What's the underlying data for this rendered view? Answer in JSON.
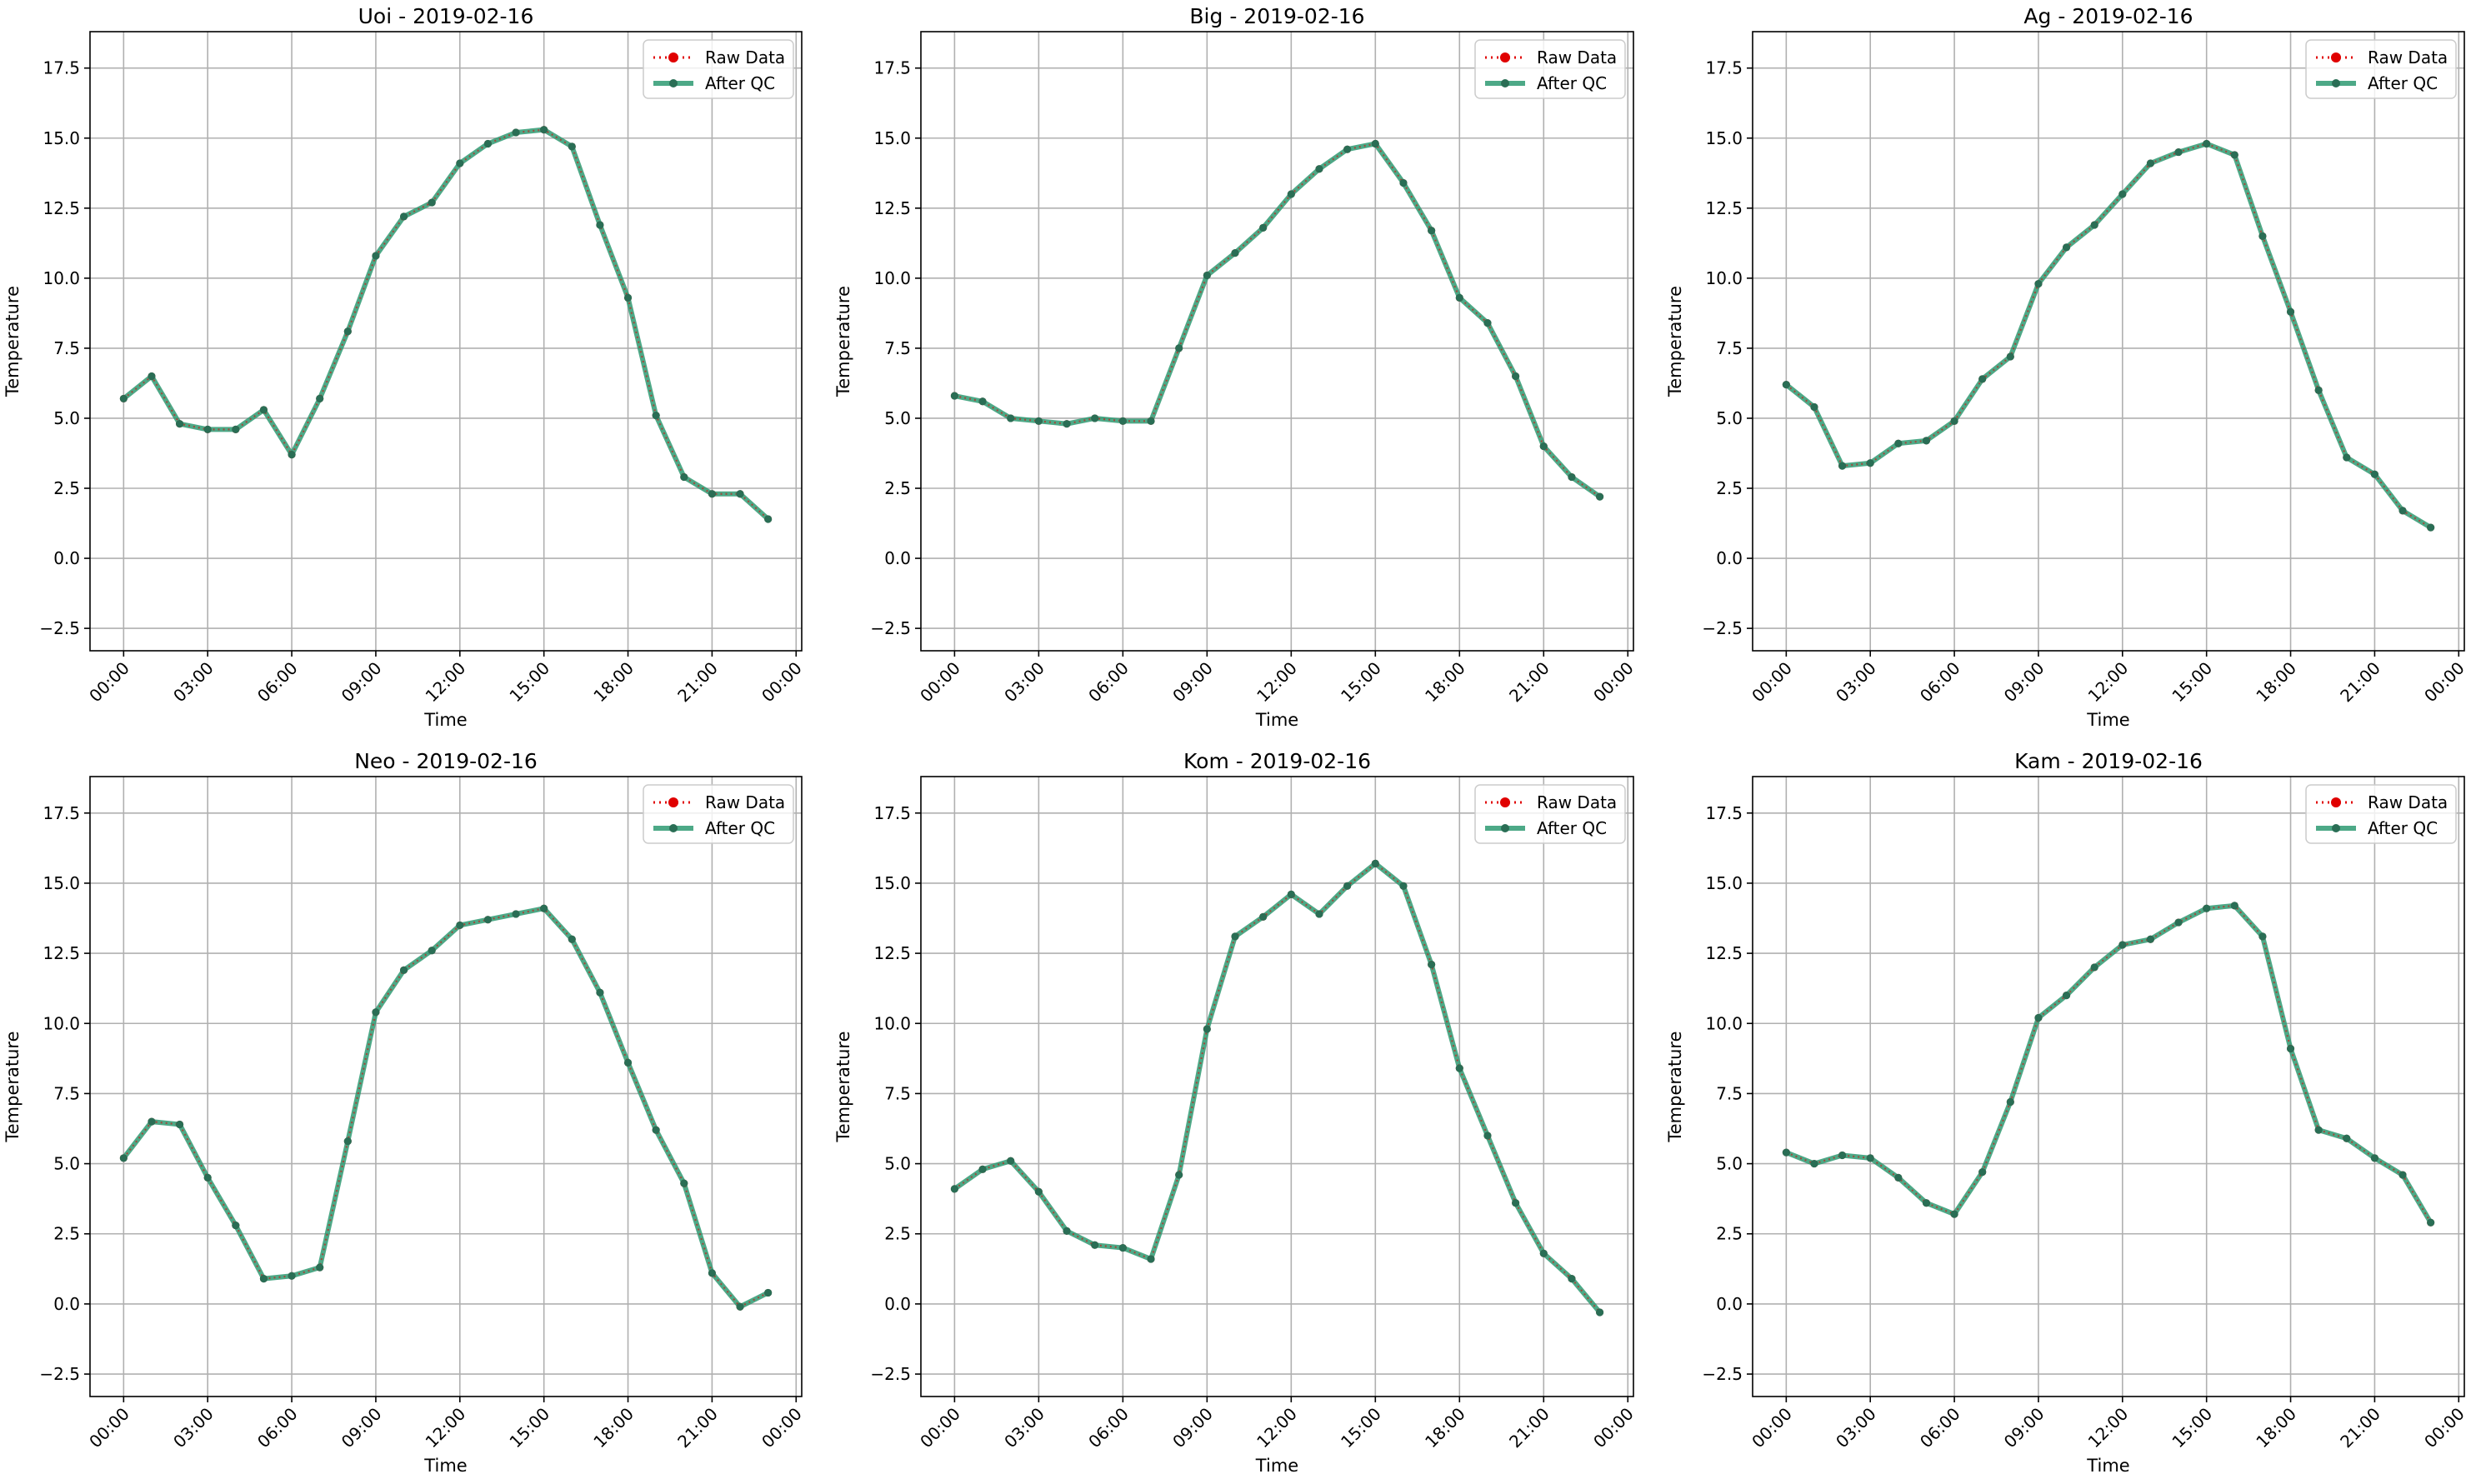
{
  "figure": {
    "background": "#ffffff"
  },
  "style": {
    "raw_color": "#e00000",
    "qc_color": "#2e9a72",
    "qc_marker_color": "#2a6e55",
    "grid_color": "#b0b0b0"
  },
  "axes_common": {
    "xlabel": "Time",
    "ylabel": "Temperature",
    "ylim": [
      -3.3,
      18.8
    ],
    "yticks": [
      -2.5,
      0.0,
      2.5,
      5.0,
      7.5,
      10.0,
      12.5,
      15.0,
      17.5
    ],
    "ytick_labels": [
      "−2.5",
      "0.0",
      "2.5",
      "5.0",
      "7.5",
      "10.0",
      "12.5",
      "15.0",
      "17.5"
    ],
    "xlim_hours": [
      -1.2,
      24.2
    ],
    "xticks_hours": [
      0,
      3,
      6,
      9,
      12,
      15,
      18,
      21,
      24
    ],
    "xtick_labels": [
      "00:00",
      "03:00",
      "06:00",
      "09:00",
      "12:00",
      "15:00",
      "18:00",
      "21:00",
      "00:00"
    ],
    "grid": true,
    "legend_position": "upper right",
    "legend": [
      "Raw Data",
      "After QC"
    ]
  },
  "chart_data": [
    {
      "type": "line",
      "title": "Uoi - 2019-02-16",
      "xlabel": "Time",
      "ylabel": "Temperature",
      "x": [
        "00:00",
        "01:00",
        "02:00",
        "03:00",
        "04:00",
        "05:00",
        "06:00",
        "07:00",
        "08:00",
        "09:00",
        "10:00",
        "11:00",
        "12:00",
        "13:00",
        "14:00",
        "15:00",
        "16:00",
        "17:00",
        "18:00",
        "19:00",
        "20:00",
        "21:00",
        "22:00",
        "23:00"
      ],
      "series": [
        {
          "name": "Raw Data",
          "values": [
            5.7,
            6.5,
            4.8,
            4.6,
            4.6,
            5.3,
            3.7,
            5.7,
            8.1,
            10.8,
            12.2,
            12.7,
            14.1,
            14.8,
            15.2,
            15.3,
            14.7,
            11.9,
            9.3,
            5.1,
            2.9,
            2.3,
            2.3,
            1.4
          ]
        },
        {
          "name": "After QC",
          "values": [
            5.7,
            6.5,
            4.8,
            4.6,
            4.6,
            5.3,
            3.7,
            5.7,
            8.1,
            10.8,
            12.2,
            12.7,
            14.1,
            14.8,
            15.2,
            15.3,
            14.7,
            11.9,
            9.3,
            5.1,
            2.9,
            2.3,
            2.3,
            1.4
          ]
        }
      ],
      "ylim": [
        -3.3,
        18.8
      ]
    },
    {
      "type": "line",
      "title": "Big - 2019-02-16",
      "xlabel": "Time",
      "ylabel": "Temperature",
      "x": [
        "00:00",
        "01:00",
        "02:00",
        "03:00",
        "04:00",
        "05:00",
        "06:00",
        "07:00",
        "08:00",
        "09:00",
        "10:00",
        "11:00",
        "12:00",
        "13:00",
        "14:00",
        "15:00",
        "16:00",
        "17:00",
        "18:00",
        "19:00",
        "20:00",
        "21:00",
        "22:00",
        "23:00"
      ],
      "series": [
        {
          "name": "Raw Data",
          "values": [
            5.8,
            5.6,
            5.0,
            4.9,
            4.8,
            5.0,
            4.9,
            4.9,
            7.5,
            10.1,
            10.9,
            11.8,
            13.0,
            13.9,
            14.6,
            14.8,
            13.4,
            11.7,
            9.3,
            8.4,
            6.5,
            4.0,
            2.9,
            2.2
          ]
        },
        {
          "name": "After QC",
          "values": [
            5.8,
            5.6,
            5.0,
            4.9,
            4.8,
            5.0,
            4.9,
            4.9,
            7.5,
            10.1,
            10.9,
            11.8,
            13.0,
            13.9,
            14.6,
            14.8,
            13.4,
            11.7,
            9.3,
            8.4,
            6.5,
            4.0,
            2.9,
            2.2
          ]
        }
      ],
      "ylim": [
        -3.3,
        18.8
      ]
    },
    {
      "type": "line",
      "title": "Ag - 2019-02-16",
      "xlabel": "Time",
      "ylabel": "Temperature",
      "x": [
        "00:00",
        "01:00",
        "02:00",
        "03:00",
        "04:00",
        "05:00",
        "06:00",
        "07:00",
        "08:00",
        "09:00",
        "10:00",
        "11:00",
        "12:00",
        "13:00",
        "14:00",
        "15:00",
        "16:00",
        "17:00",
        "18:00",
        "19:00",
        "20:00",
        "21:00",
        "22:00",
        "23:00"
      ],
      "series": [
        {
          "name": "Raw Data",
          "values": [
            6.2,
            5.4,
            3.3,
            3.4,
            4.1,
            4.2,
            4.9,
            6.4,
            7.2,
            9.8,
            11.1,
            11.9,
            13.0,
            14.1,
            14.5,
            14.8,
            14.4,
            11.5,
            8.8,
            6.0,
            3.6,
            3.0,
            1.7,
            1.1
          ]
        },
        {
          "name": "After QC",
          "values": [
            6.2,
            5.4,
            3.3,
            3.4,
            4.1,
            4.2,
            4.9,
            6.4,
            7.2,
            9.8,
            11.1,
            11.9,
            13.0,
            14.1,
            14.5,
            14.8,
            14.4,
            11.5,
            8.8,
            6.0,
            3.6,
            3.0,
            1.7,
            1.1
          ]
        }
      ],
      "ylim": [
        -3.3,
        18.8
      ]
    },
    {
      "type": "line",
      "title": "Neo - 2019-02-16",
      "xlabel": "Time",
      "ylabel": "Temperature",
      "x": [
        "00:00",
        "01:00",
        "02:00",
        "03:00",
        "04:00",
        "05:00",
        "06:00",
        "07:00",
        "08:00",
        "09:00",
        "10:00",
        "11:00",
        "12:00",
        "13:00",
        "14:00",
        "15:00",
        "16:00",
        "17:00",
        "18:00",
        "19:00",
        "20:00",
        "21:00",
        "22:00",
        "23:00"
      ],
      "series": [
        {
          "name": "Raw Data",
          "values": [
            5.2,
            6.5,
            6.4,
            4.5,
            2.8,
            0.9,
            1.0,
            1.3,
            5.8,
            10.4,
            11.9,
            12.6,
            13.5,
            13.7,
            13.9,
            14.1,
            13.0,
            11.1,
            8.6,
            6.2,
            4.3,
            1.1,
            -0.1,
            0.4
          ]
        },
        {
          "name": "After QC",
          "values": [
            5.2,
            6.5,
            6.4,
            4.5,
            2.8,
            0.9,
            1.0,
            1.3,
            5.8,
            10.4,
            11.9,
            12.6,
            13.5,
            13.7,
            13.9,
            14.1,
            13.0,
            11.1,
            8.6,
            6.2,
            4.3,
            1.1,
            -0.1,
            0.4
          ]
        }
      ],
      "ylim": [
        -3.3,
        18.8
      ]
    },
    {
      "type": "line",
      "title": "Kom - 2019-02-16",
      "xlabel": "Time",
      "ylabel": "Temperature",
      "x": [
        "00:00",
        "01:00",
        "02:00",
        "03:00",
        "04:00",
        "05:00",
        "06:00",
        "07:00",
        "08:00",
        "09:00",
        "10:00",
        "11:00",
        "12:00",
        "13:00",
        "14:00",
        "15:00",
        "16:00",
        "17:00",
        "18:00",
        "19:00",
        "20:00",
        "21:00",
        "22:00",
        "23:00"
      ],
      "series": [
        {
          "name": "Raw Data",
          "values": [
            4.1,
            4.8,
            5.1,
            4.0,
            2.6,
            2.1,
            2.0,
            1.6,
            4.6,
            9.8,
            13.1,
            13.8,
            14.6,
            13.9,
            14.9,
            15.7,
            14.9,
            12.1,
            8.4,
            6.0,
            3.6,
            1.8,
            0.9,
            -0.3
          ]
        },
        {
          "name": "After QC",
          "values": [
            4.1,
            4.8,
            5.1,
            4.0,
            2.6,
            2.1,
            2.0,
            1.6,
            4.6,
            9.8,
            13.1,
            13.8,
            14.6,
            13.9,
            14.9,
            15.7,
            14.9,
            12.1,
            8.4,
            6.0,
            3.6,
            1.8,
            0.9,
            -0.3
          ]
        }
      ],
      "ylim": [
        -3.3,
        18.8
      ]
    },
    {
      "type": "line",
      "title": "Kam - 2019-02-16",
      "xlabel": "Time",
      "ylabel": "Temperature",
      "x": [
        "00:00",
        "01:00",
        "02:00",
        "03:00",
        "04:00",
        "05:00",
        "06:00",
        "07:00",
        "08:00",
        "09:00",
        "10:00",
        "11:00",
        "12:00",
        "13:00",
        "14:00",
        "15:00",
        "16:00",
        "17:00",
        "18:00",
        "19:00",
        "20:00",
        "21:00",
        "22:00",
        "23:00"
      ],
      "series": [
        {
          "name": "Raw Data",
          "values": [
            5.4,
            5.0,
            5.3,
            5.2,
            4.5,
            3.6,
            3.2,
            4.7,
            7.2,
            10.2,
            11.0,
            12.0,
            12.8,
            13.0,
            13.6,
            14.1,
            14.2,
            13.1,
            9.1,
            6.2,
            5.9,
            5.2,
            4.6,
            2.9
          ]
        },
        {
          "name": "After QC",
          "values": [
            5.4,
            5.0,
            5.3,
            5.2,
            4.5,
            3.6,
            3.2,
            4.7,
            7.2,
            10.2,
            11.0,
            12.0,
            12.8,
            13.0,
            13.6,
            14.1,
            14.2,
            13.1,
            9.1,
            6.2,
            5.9,
            5.2,
            4.6,
            2.9
          ]
        }
      ],
      "ylim": [
        -3.3,
        18.8
      ]
    }
  ]
}
